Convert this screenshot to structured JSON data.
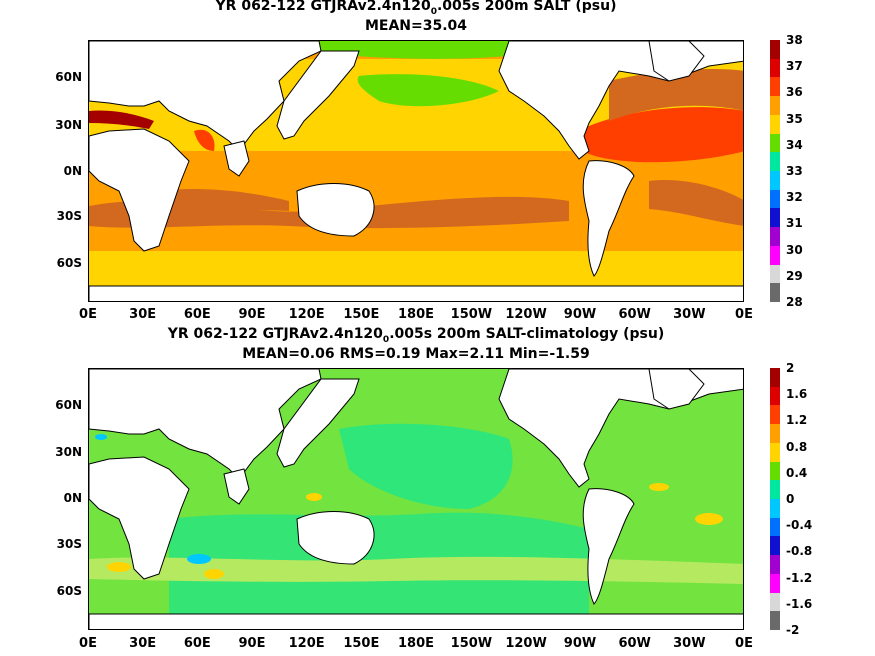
{
  "panels": [
    {
      "title_prefix": "YR 062-122 GTJRAv2.4n120",
      "title_sub": "0",
      "title_suffix": ".005s 200m SALT (psu)",
      "stats": "MEAN=35.04",
      "colorbar_labels": [
        "38",
        "37",
        "36",
        "35",
        "34",
        "33",
        "32",
        "31",
        "30",
        "29",
        "28"
      ],
      "colorbar_colors": [
        "#a50000",
        "#dd0000",
        "#ff3f00",
        "#ff9f00",
        "#ffd400",
        "#66dd00",
        "#00e8a0",
        "#00c8ff",
        "#0070ff",
        "#1010d0",
        "#a000d0",
        "#ff00ff",
        "#d8d8d8",
        "#6a6a6a"
      ]
    },
    {
      "title_prefix": "YR 062-122 GTJRAv2.4n120",
      "title_sub": "0",
      "title_suffix": ".005s 200m SALT-climatology (psu)",
      "stats": "MEAN=0.06   RMS=0.19   Max=2.11   Min=-1.59",
      "colorbar_labels": [
        "2",
        "1.6",
        "1.2",
        "0.8",
        "0.4",
        "0",
        "-0.4",
        "-0.8",
        "-1.2",
        "-1.6",
        "-2"
      ],
      "colorbar_colors": [
        "#a50000",
        "#dd0000",
        "#ff3f00",
        "#ff9f00",
        "#ffd400",
        "#66dd00",
        "#00e8a0",
        "#00c8ff",
        "#0070ff",
        "#1010d0",
        "#a000d0",
        "#ff00ff",
        "#d8d8d8",
        "#6a6a6a"
      ]
    }
  ],
  "x_ticks": [
    "0E",
    "30E",
    "60E",
    "90E",
    "120E",
    "150E",
    "180E",
    "150W",
    "120W",
    "90W",
    "60W",
    "30W",
    "0E"
  ],
  "y_ticks": [
    "60N",
    "30N",
    "0N",
    "30S",
    "60S"
  ]
}
